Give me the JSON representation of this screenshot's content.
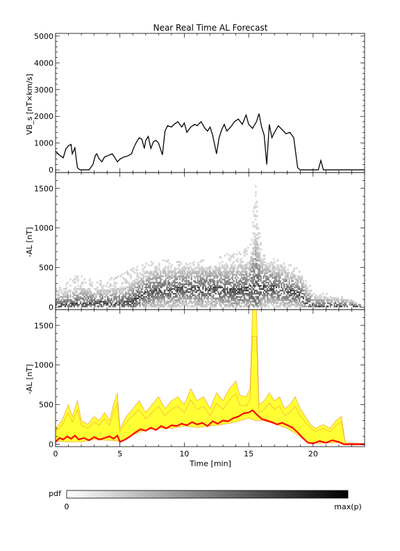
{
  "title": "Near Real Time AL Forecast",
  "colors": {
    "vbs_line": "#000000",
    "median_line": "#ff0000",
    "band_fill": "#ffff33",
    "band_edge": "#f0a040",
    "axis": "#000000"
  },
  "chart_data": [
    {
      "type": "line",
      "panel": "top",
      "title": "Near Real Time AL Forecast",
      "ylabel": "VB_s [nT×km/s]",
      "xlabel": "",
      "xlim": [
        0,
        24
      ],
      "ylim": [
        -100,
        5100
      ],
      "yticks": [
        0,
        1000,
        2000,
        3000,
        4000,
        5000
      ],
      "xticks": [
        0,
        5,
        10,
        15,
        20
      ],
      "series": [
        {
          "values_xy": [
            [
              0.0,
              700
            ],
            [
              0.3,
              550
            ],
            [
              0.6,
              450
            ],
            [
              0.8,
              780
            ],
            [
              1.0,
              900
            ],
            [
              1.2,
              950
            ],
            [
              1.3,
              600
            ],
            [
              1.5,
              820
            ],
            [
              1.7,
              80
            ],
            [
              1.9,
              0
            ],
            [
              2.2,
              0
            ],
            [
              2.6,
              0
            ],
            [
              2.9,
              200
            ],
            [
              3.1,
              550
            ],
            [
              3.2,
              600
            ],
            [
              3.4,
              400
            ],
            [
              3.6,
              300
            ],
            [
              3.8,
              480
            ],
            [
              4.0,
              520
            ],
            [
              4.2,
              560
            ],
            [
              4.4,
              600
            ],
            [
              4.6,
              460
            ],
            [
              4.8,
              300
            ],
            [
              5.0,
              400
            ],
            [
              5.3,
              480
            ],
            [
              5.6,
              520
            ],
            [
              5.9,
              600
            ],
            [
              6.1,
              860
            ],
            [
              6.3,
              1050
            ],
            [
              6.5,
              1200
            ],
            [
              6.7,
              1150
            ],
            [
              6.9,
              800
            ],
            [
              7.0,
              1100
            ],
            [
              7.2,
              1250
            ],
            [
              7.4,
              800
            ],
            [
              7.6,
              1050
            ],
            [
              7.8,
              1100
            ],
            [
              8.0,
              1000
            ],
            [
              8.3,
              560
            ],
            [
              8.5,
              1450
            ],
            [
              8.7,
              1650
            ],
            [
              9.0,
              1600
            ],
            [
              9.2,
              1700
            ],
            [
              9.5,
              1800
            ],
            [
              9.8,
              1600
            ],
            [
              10.0,
              1750
            ],
            [
              10.2,
              1400
            ],
            [
              10.5,
              1600
            ],
            [
              10.8,
              1700
            ],
            [
              11.0,
              1650
            ],
            [
              11.3,
              1800
            ],
            [
              11.6,
              1550
            ],
            [
              11.8,
              1450
            ],
            [
              12.0,
              1600
            ],
            [
              12.2,
              1300
            ],
            [
              12.5,
              600
            ],
            [
              12.7,
              1200
            ],
            [
              12.9,
              1500
            ],
            [
              13.1,
              1700
            ],
            [
              13.3,
              1450
            ],
            [
              13.6,
              1600
            ],
            [
              13.9,
              1800
            ],
            [
              14.2,
              1900
            ],
            [
              14.5,
              1700
            ],
            [
              14.8,
              2050
            ],
            [
              15.0,
              1700
            ],
            [
              15.3,
              1550
            ],
            [
              15.6,
              1800
            ],
            [
              15.8,
              2100
            ],
            [
              16.0,
              1600
            ],
            [
              16.2,
              1300
            ],
            [
              16.4,
              200
            ],
            [
              16.6,
              1700
            ],
            [
              16.8,
              1200
            ],
            [
              17.0,
              1400
            ],
            [
              17.3,
              1650
            ],
            [
              17.6,
              1500
            ],
            [
              17.9,
              1350
            ],
            [
              18.2,
              1400
            ],
            [
              18.5,
              1200
            ],
            [
              18.8,
              80
            ],
            [
              19.0,
              0
            ],
            [
              20.4,
              0
            ],
            [
              20.6,
              350
            ],
            [
              20.8,
              0
            ],
            [
              24.0,
              0
            ]
          ]
        }
      ]
    },
    {
      "type": "heatmap",
      "panel": "middle",
      "ylabel": "-AL [nT]",
      "xlim": [
        0,
        24
      ],
      "ylim": [
        -30,
        1700
      ],
      "yticks": [
        0,
        500,
        1000,
        1500
      ],
      "xticks": [
        0,
        5,
        10,
        15,
        20
      ],
      "colorbar": {
        "label": "pdf",
        "min_label": "0",
        "max_label": "max(p)"
      },
      "ridge_xy": [
        [
          0.0,
          30
        ],
        [
          1.0,
          40
        ],
        [
          2.0,
          50
        ],
        [
          3.0,
          60
        ],
        [
          4.0,
          60
        ],
        [
          5.0,
          50
        ],
        [
          5.8,
          80
        ],
        [
          6.5,
          150
        ],
        [
          7.0,
          200
        ],
        [
          8.0,
          240
        ],
        [
          9.0,
          230
        ],
        [
          10.0,
          260
        ],
        [
          11.0,
          240
        ],
        [
          12.0,
          250
        ],
        [
          13.0,
          240
        ],
        [
          14.0,
          230
        ],
        [
          15.0,
          250
        ],
        [
          15.5,
          320
        ],
        [
          16.0,
          280
        ],
        [
          17.0,
          260
        ],
        [
          18.0,
          220
        ],
        [
          19.0,
          180
        ],
        [
          19.5,
          60
        ],
        [
          20.0,
          20
        ],
        [
          22.0,
          10
        ],
        [
          24.0,
          0
        ]
      ],
      "spread_xy": [
        [
          0.0,
          250
        ],
        [
          1.0,
          350
        ],
        [
          2.0,
          420
        ],
        [
          3.0,
          300
        ],
        [
          4.0,
          350
        ],
        [
          5.0,
          400
        ],
        [
          6.0,
          500
        ],
        [
          7.0,
          550
        ],
        [
          8.0,
          600
        ],
        [
          9.0,
          580
        ],
        [
          10.0,
          550
        ],
        [
          11.0,
          580
        ],
        [
          12.0,
          600
        ],
        [
          13.0,
          650
        ],
        [
          14.0,
          700
        ],
        [
          15.0,
          750
        ],
        [
          15.5,
          1600
        ],
        [
          16.0,
          650
        ],
        [
          17.0,
          600
        ],
        [
          18.0,
          550
        ],
        [
          19.0,
          450
        ],
        [
          20.0,
          200
        ],
        [
          22.0,
          150
        ],
        [
          24.0,
          0
        ]
      ]
    },
    {
      "type": "area",
      "panel": "bottom",
      "ylabel": "-AL [nT]",
      "xlabel": "Time [min]",
      "xlim": [
        0,
        24
      ],
      "ylim": [
        -30,
        1700
      ],
      "yticks": [
        0,
        500,
        1000,
        1500
      ],
      "xticks": [
        0,
        5,
        10,
        15,
        20
      ],
      "series": [
        {
          "role": "upper",
          "values_xy": [
            [
              0.0,
              200
            ],
            [
              0.5,
              300
            ],
            [
              1.0,
              500
            ],
            [
              1.3,
              350
            ],
            [
              1.7,
              550
            ],
            [
              2.0,
              300
            ],
            [
              2.5,
              250
            ],
            [
              3.0,
              350
            ],
            [
              3.4,
              300
            ],
            [
              3.8,
              400
            ],
            [
              4.2,
              300
            ],
            [
              4.5,
              500
            ],
            [
              4.8,
              650
            ],
            [
              5.0,
              200
            ],
            [
              5.5,
              350
            ],
            [
              6.0,
              450
            ],
            [
              6.5,
              550
            ],
            [
              7.0,
              400
            ],
            [
              7.5,
              500
            ],
            [
              8.0,
              600
            ],
            [
              8.5,
              450
            ],
            [
              9.0,
              550
            ],
            [
              9.5,
              600
            ],
            [
              10.0,
              500
            ],
            [
              10.5,
              700
            ],
            [
              11.0,
              550
            ],
            [
              11.5,
              600
            ],
            [
              12.0,
              450
            ],
            [
              12.5,
              650
            ],
            [
              13.0,
              550
            ],
            [
              13.5,
              700
            ],
            [
              14.0,
              800
            ],
            [
              14.3,
              620
            ],
            [
              14.8,
              600
            ],
            [
              15.1,
              700
            ],
            [
              15.3,
              1700
            ],
            [
              15.6,
              1700
            ],
            [
              15.8,
              500
            ],
            [
              16.2,
              550
            ],
            [
              16.6,
              650
            ],
            [
              17.0,
              550
            ],
            [
              17.4,
              600
            ],
            [
              17.8,
              450
            ],
            [
              18.2,
              500
            ],
            [
              18.6,
              600
            ],
            [
              19.0,
              450
            ],
            [
              19.4,
              350
            ],
            [
              19.8,
              250
            ],
            [
              20.2,
              200
            ],
            [
              20.8,
              250
            ],
            [
              21.3,
              200
            ],
            [
              21.8,
              300
            ],
            [
              22.2,
              350
            ],
            [
              22.5,
              20
            ],
            [
              24.0,
              10
            ]
          ]
        },
        {
          "role": "lower",
          "values_xy": [
            [
              0.0,
              40
            ],
            [
              1.0,
              30
            ],
            [
              2.0,
              30
            ],
            [
              3.0,
              60
            ],
            [
              4.0,
              50
            ],
            [
              5.0,
              40
            ],
            [
              5.5,
              60
            ],
            [
              6.0,
              120
            ],
            [
              7.0,
              180
            ],
            [
              8.0,
              200
            ],
            [
              9.0,
              200
            ],
            [
              10.0,
              230
            ],
            [
              11.0,
              210
            ],
            [
              12.0,
              230
            ],
            [
              13.0,
              250
            ],
            [
              14.0,
              280
            ],
            [
              15.0,
              330
            ],
            [
              15.5,
              300
            ],
            [
              16.0,
              300
            ],
            [
              17.0,
              260
            ],
            [
              18.0,
              200
            ],
            [
              18.8,
              120
            ],
            [
              19.5,
              30
            ],
            [
              20.0,
              10
            ],
            [
              22.0,
              20
            ],
            [
              22.5,
              0
            ],
            [
              24.0,
              0
            ]
          ]
        },
        {
          "role": "median",
          "name": "",
          "values_xy": [
            [
              0.0,
              30
            ],
            [
              0.3,
              80
            ],
            [
              0.6,
              60
            ],
            [
              0.9,
              100
            ],
            [
              1.2,
              70
            ],
            [
              1.5,
              110
            ],
            [
              1.8,
              60
            ],
            [
              2.2,
              80
            ],
            [
              2.6,
              50
            ],
            [
              3.0,
              90
            ],
            [
              3.4,
              60
            ],
            [
              3.8,
              80
            ],
            [
              4.2,
              100
            ],
            [
              4.5,
              70
            ],
            [
              4.8,
              110
            ],
            [
              5.0,
              30
            ],
            [
              5.4,
              60
            ],
            [
              5.8,
              100
            ],
            [
              6.2,
              150
            ],
            [
              6.6,
              190
            ],
            [
              7.0,
              170
            ],
            [
              7.4,
              210
            ],
            [
              7.8,
              180
            ],
            [
              8.2,
              230
            ],
            [
              8.6,
              200
            ],
            [
              9.0,
              240
            ],
            [
              9.4,
              230
            ],
            [
              9.8,
              260
            ],
            [
              10.2,
              240
            ],
            [
              10.6,
              280
            ],
            [
              11.0,
              250
            ],
            [
              11.4,
              270
            ],
            [
              11.8,
              230
            ],
            [
              12.2,
              290
            ],
            [
              12.6,
              260
            ],
            [
              13.0,
              300
            ],
            [
              13.4,
              290
            ],
            [
              13.8,
              330
            ],
            [
              14.2,
              350
            ],
            [
              14.6,
              390
            ],
            [
              15.0,
              400
            ],
            [
              15.3,
              430
            ],
            [
              15.6,
              380
            ],
            [
              16.0,
              320
            ],
            [
              16.4,
              300
            ],
            [
              16.8,
              280
            ],
            [
              17.2,
              250
            ],
            [
              17.6,
              270
            ],
            [
              18.0,
              240
            ],
            [
              18.4,
              210
            ],
            [
              18.8,
              150
            ],
            [
              19.2,
              80
            ],
            [
              19.6,
              20
            ],
            [
              20.0,
              10
            ],
            [
              20.5,
              40
            ],
            [
              21.0,
              20
            ],
            [
              21.5,
              50
            ],
            [
              22.0,
              30
            ],
            [
              22.4,
              0
            ],
            [
              24.0,
              0
            ]
          ]
        }
      ]
    }
  ]
}
